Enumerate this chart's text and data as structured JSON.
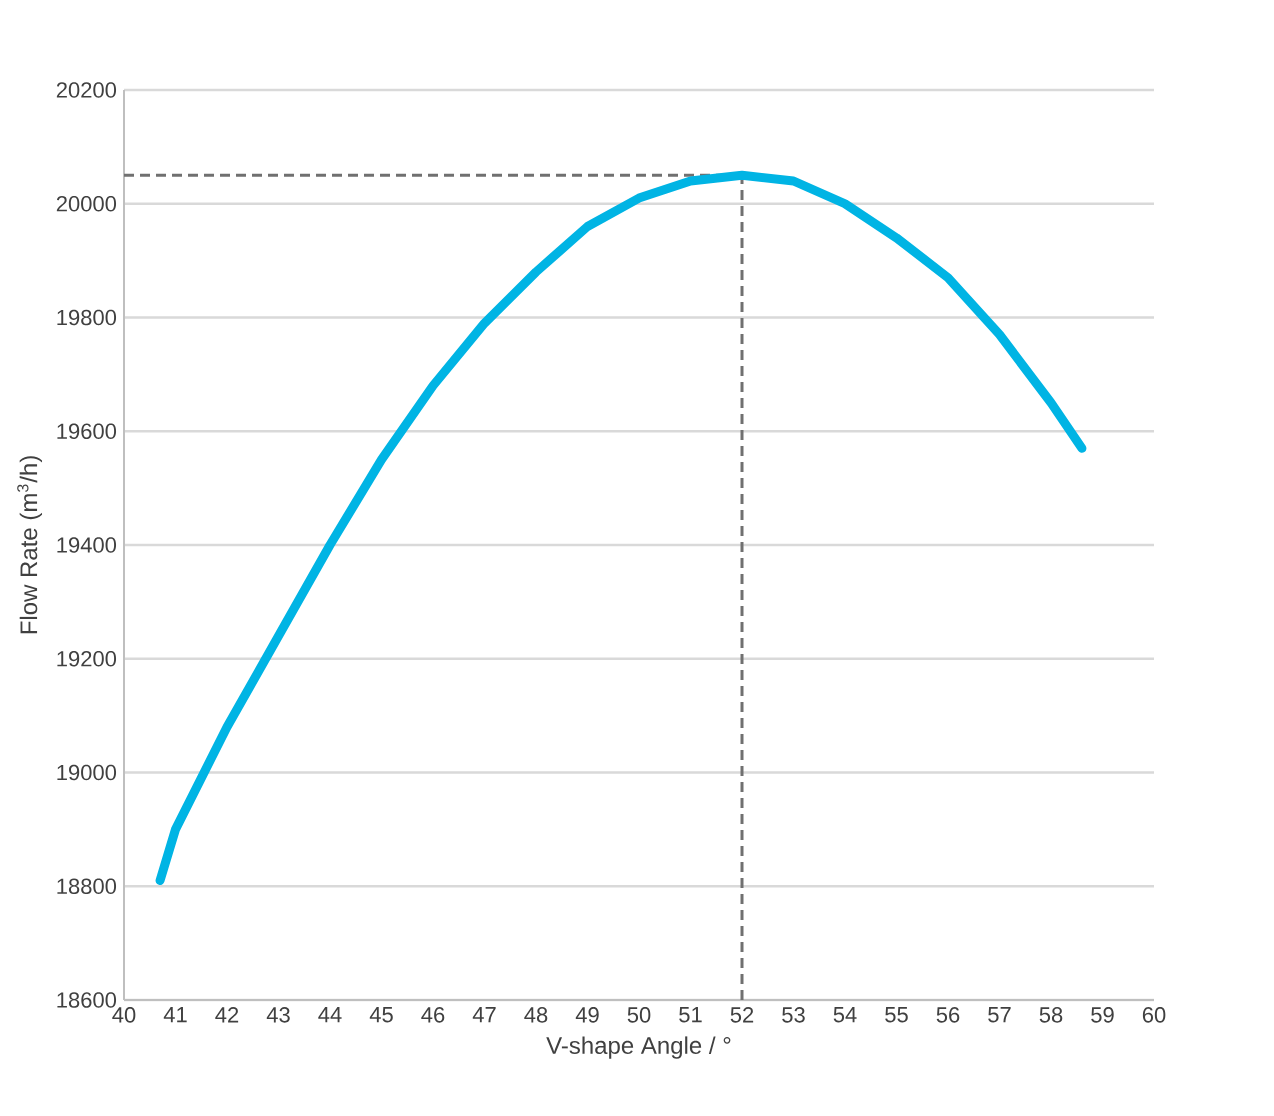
{
  "chart_data": {
    "type": "line",
    "xlabel": "V-shape Angle / °",
    "ylabel": "Flow Rate (m$^{3}$/h)",
    "xlim": [
      40,
      60
    ],
    "xticks": [
      40,
      41,
      42,
      43,
      44,
      45,
      46,
      47,
      48,
      49,
      50,
      51,
      52,
      53,
      54,
      55,
      56,
      57,
      58,
      59,
      60
    ],
    "ylim": [
      18600,
      20200
    ],
    "yticks": [
      18600,
      18800,
      19000,
      19200,
      19400,
      19600,
      19800,
      20000,
      20200
    ],
    "grid": "y",
    "series": [
      {
        "color": "#00b4e4",
        "x": [
          40.7,
          41,
          42,
          43,
          44,
          45,
          46,
          47,
          48,
          49,
          50,
          51,
          52,
          53,
          54,
          55,
          56,
          57,
          58,
          58.6
        ],
        "values": [
          18810,
          18900,
          19080,
          19240,
          19400,
          19550,
          19680,
          19790,
          19880,
          19960,
          20010,
          20040,
          20050,
          20040,
          20000,
          19940,
          19870,
          19770,
          19650,
          19570
        ]
      }
    ],
    "ref_lines": [
      {
        "axis": "y",
        "value": 20050,
        "color": "#707070",
        "line_style": "dashed"
      },
      {
        "axis": "x",
        "value": 52,
        "color": "#707070",
        "line_style": "dashed"
      }
    ]
  }
}
